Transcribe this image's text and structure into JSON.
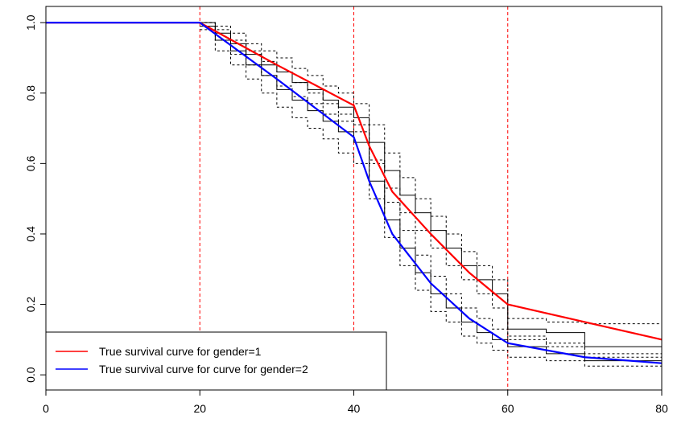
{
  "chart_data": {
    "type": "line",
    "xlim": [
      0,
      80
    ],
    "ylim": [
      -0.043,
      1.046
    ],
    "xticks": [
      0,
      20,
      40,
      60,
      80
    ],
    "yticks": [
      {
        "value": 0,
        "label": "0.0"
      },
      0.2,
      0.4,
      0.6,
      0.8,
      {
        "value": 1,
        "label": "1.0"
      }
    ],
    "vlines": [
      20,
      40,
      60
    ],
    "vline_color": "#ff0000",
    "legend": "bottomleft",
    "series": [
      {
        "name": "True survival curve for gender=1",
        "color": "#ff0000",
        "x": [
          0,
          20,
          30,
          40,
          42,
          45,
          50,
          55,
          60,
          70,
          80
        ],
        "values": [
          1,
          1,
          0.88,
          0.765,
          0.65,
          0.52,
          0.4,
          0.29,
          0.2,
          0.15,
          0.1
        ]
      },
      {
        "name": "True survival curve for curve for gender=2",
        "color": "#0000ff",
        "x": [
          0,
          20,
          30,
          40,
          42,
          45,
          50,
          55,
          60,
          70,
          80
        ],
        "values": [
          1,
          1,
          0.84,
          0.675,
          0.55,
          0.4,
          0.26,
          0.16,
          0.09,
          0.05,
          0.033
        ]
      }
    ],
    "step_x": [
      20,
      22,
      24,
      26,
      28,
      30,
      32,
      34,
      36,
      38,
      40,
      42,
      44,
      46,
      48,
      50,
      52,
      54,
      56,
      58,
      60,
      65,
      70,
      80
    ],
    "step_series": [
      {
        "color": "#000000",
        "dashed": false,
        "values": [
          1,
          0.97,
          0.94,
          0.91,
          0.88,
          0.86,
          0.83,
          0.81,
          0.78,
          0.76,
          0.73,
          0.66,
          0.58,
          0.51,
          0.46,
          0.41,
          0.36,
          0.31,
          0.27,
          0.23,
          0.13,
          0.12,
          0.08,
          0.08
        ]
      },
      {
        "color": "#000000",
        "dashed": true,
        "values": [
          1,
          0.99,
          0.97,
          0.94,
          0.92,
          0.9,
          0.87,
          0.85,
          0.82,
          0.8,
          0.77,
          0.71,
          0.63,
          0.56,
          0.5,
          0.45,
          0.4,
          0.35,
          0.31,
          0.27,
          0.16,
          0.15,
          0.145,
          0.145
        ]
      },
      {
        "color": "#000000",
        "dashed": true,
        "values": [
          0.99,
          0.95,
          0.91,
          0.88,
          0.85,
          0.82,
          0.79,
          0.77,
          0.74,
          0.72,
          0.69,
          0.61,
          0.53,
          0.46,
          0.41,
          0.36,
          0.31,
          0.27,
          0.23,
          0.19,
          0.1,
          0.09,
          0.05,
          0.05
        ]
      },
      {
        "color": "#000000",
        "dashed": false,
        "values": [
          0.99,
          0.95,
          0.92,
          0.88,
          0.85,
          0.81,
          0.78,
          0.75,
          0.72,
          0.69,
          0.66,
          0.55,
          0.44,
          0.36,
          0.29,
          0.23,
          0.19,
          0.15,
          0.12,
          0.1,
          0.08,
          0.06,
          0.04,
          0.035
        ]
      },
      {
        "color": "#000000",
        "dashed": true,
        "values": [
          1,
          0.98,
          0.95,
          0.92,
          0.89,
          0.86,
          0.83,
          0.8,
          0.77,
          0.74,
          0.71,
          0.6,
          0.49,
          0.41,
          0.34,
          0.28,
          0.23,
          0.19,
          0.16,
          0.13,
          0.11,
          0.08,
          0.06,
          0.055
        ]
      },
      {
        "color": "#000000",
        "dashed": true,
        "values": [
          0.98,
          0.92,
          0.88,
          0.84,
          0.8,
          0.76,
          0.73,
          0.7,
          0.67,
          0.63,
          0.6,
          0.5,
          0.39,
          0.31,
          0.24,
          0.18,
          0.15,
          0.11,
          0.09,
          0.07,
          0.05,
          0.04,
          0.025,
          0.02
        ]
      }
    ]
  }
}
